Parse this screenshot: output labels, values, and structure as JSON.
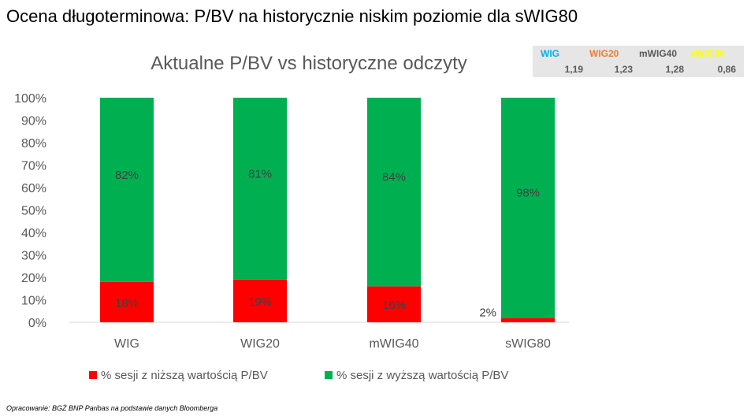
{
  "page": {
    "heading": "Ocena długoterminowa: P/BV na historycznie niskim poziomie dla sWIG80",
    "footnote": "Opracowanie: BGŻ BNP Paribas na podstawie danych Bloomberga"
  },
  "pbv_table": {
    "columns": [
      {
        "name": "WIG",
        "value": "1,19",
        "color": "#00b0f0"
      },
      {
        "name": "WIG20",
        "value": "1,23",
        "color": "#ed7d31"
      },
      {
        "name": "mWIG40",
        "value": "1,28",
        "color": "#595959"
      },
      {
        "name": "sWIG80",
        "value": "0,86",
        "color": "#ffff00"
      }
    ]
  },
  "chart_data": {
    "type": "bar",
    "stacked": true,
    "title": "Aktualne P/BV vs historyczne odczyty",
    "categories": [
      "WIG",
      "WIG20",
      "mWIG40",
      "sWIG80"
    ],
    "series": [
      {
        "name": "% sesji z niższą wartością P/BV",
        "color": "#ff0000",
        "values": [
          18,
          19,
          16,
          2
        ]
      },
      {
        "name": "% sesji z wyższą wartością P/BV",
        "color": "#00b050",
        "values": [
          82,
          81,
          84,
          98
        ]
      }
    ],
    "data_labels": [
      [
        "18%",
        "19%",
        "16%",
        "2%"
      ],
      [
        "82%",
        "81%",
        "84%",
        "98%"
      ]
    ],
    "y_ticks": [
      "0%",
      "10%",
      "20%",
      "30%",
      "40%",
      "50%",
      "60%",
      "70%",
      "80%",
      "90%",
      "100%"
    ],
    "ylim": [
      0,
      100
    ],
    "grid": false,
    "legend_position": "bottom"
  }
}
